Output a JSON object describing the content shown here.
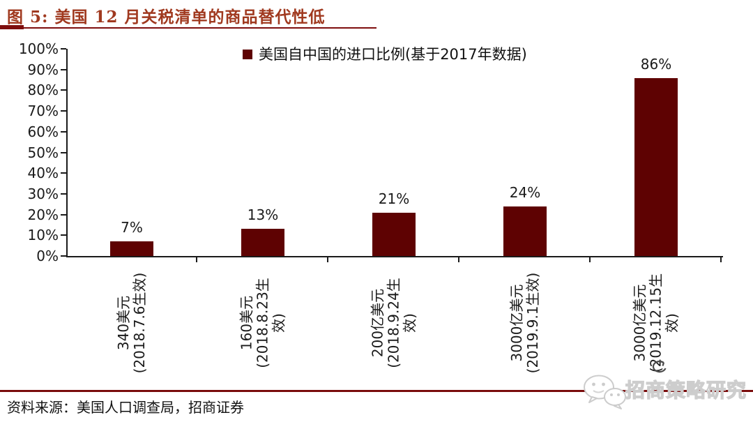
{
  "header": {
    "title": "图 5: 美国 12 月关税清单的商品替代性低"
  },
  "legend": {
    "label": "美国自中国的进口比例(基于2017年数据)"
  },
  "chart_data": {
    "type": "bar",
    "title": "图 5: 美国 12 月关税清单的商品替代性低",
    "legend": [
      "美国自中国的进口比例(基于2017年数据)"
    ],
    "legend_position": "top-center",
    "categories": [
      "340美元(2018.7.6生效)",
      "160美元(2018.8.23生效)",
      "200亿美元(2018.9.24生效)",
      "3000亿美元(2019.9.1生效)",
      "3000亿美元(2019.12.15生效)"
    ],
    "category_lines": [
      [
        "340美元",
        "(2018.7.6生效)"
      ],
      [
        "160美元",
        "(2018.8.23生",
        "效)"
      ],
      [
        "200亿美元",
        "(2018.9.24生",
        "效)"
      ],
      [
        "3000亿美元",
        "(2019.9.1生效)"
      ],
      [
        "3000亿美元",
        "(2019.12.15生",
        "效)"
      ]
    ],
    "values": [
      7,
      13,
      21,
      24,
      86
    ],
    "value_labels": [
      "7%",
      "13%",
      "21%",
      "24%",
      "86%"
    ],
    "xlabel": "",
    "ylabel": "",
    "ylim": [
      0,
      100
    ],
    "ytick_step": 10,
    "ytick_labels": [
      "0%",
      "10%",
      "20%",
      "30%",
      "40%",
      "50%",
      "60%",
      "70%",
      "80%",
      "90%",
      "100%"
    ],
    "grid": false,
    "bar_color": "#5E0202",
    "label_rotation": -90
  },
  "footer": {
    "source": "资料来源：美国人口调查局，招商证券"
  },
  "watermark": {
    "label": "招商策略研究",
    "icons": [
      "refresh-arrow-icon",
      "wechat-icon"
    ]
  },
  "colors": {
    "bar": "#5E0202",
    "title": "#A0391F",
    "rule": "#7E0E0E",
    "axis": "#1A1A1A",
    "watermark_outline": "#CDCDCD"
  }
}
